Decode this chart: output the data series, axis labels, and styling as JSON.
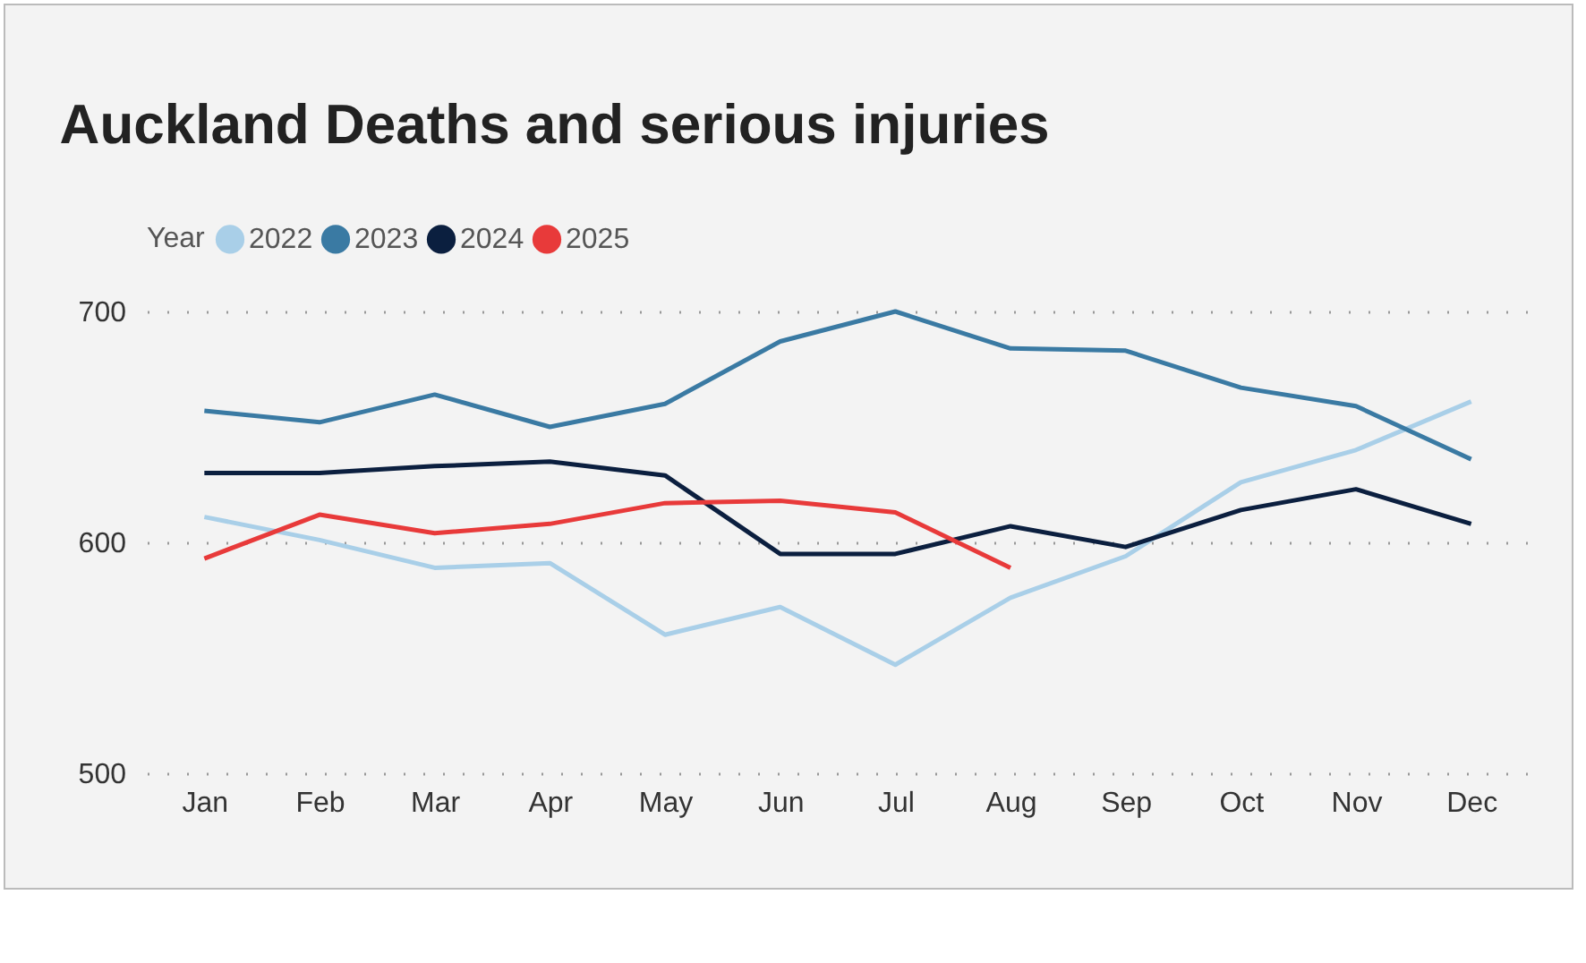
{
  "chart_data": {
    "type": "line",
    "title": "Auckland Deaths and serious injuries",
    "legend_title": "Year",
    "categories": [
      "Jan",
      "Feb",
      "Mar",
      "Apr",
      "May",
      "Jun",
      "Jul",
      "Aug",
      "Sep",
      "Oct",
      "Nov",
      "Dec"
    ],
    "series": [
      {
        "name": "2022",
        "color": "#a9cfe8",
        "values": [
          611,
          601,
          589,
          591,
          560,
          572,
          547,
          576,
          594,
          626,
          640,
          661
        ]
      },
      {
        "name": "2023",
        "color": "#3a7aa3",
        "values": [
          657,
          652,
          664,
          650,
          660,
          687,
          700,
          684,
          683,
          667,
          659,
          636
        ]
      },
      {
        "name": "2024",
        "color": "#0b1f3f",
        "values": [
          630,
          630,
          633,
          635,
          629,
          595,
          595,
          607,
          598,
          614,
          623,
          608
        ]
      },
      {
        "name": "2025",
        "color": "#e83a3a",
        "values": [
          593,
          612,
          604,
          608,
          617,
          618,
          613,
          589,
          null,
          null,
          null,
          null
        ]
      }
    ],
    "ylim": [
      500,
      700
    ],
    "yticks": [
      500,
      600,
      700
    ],
    "grid": "y",
    "legend": "top",
    "marker": "none",
    "line_style": "solid"
  }
}
